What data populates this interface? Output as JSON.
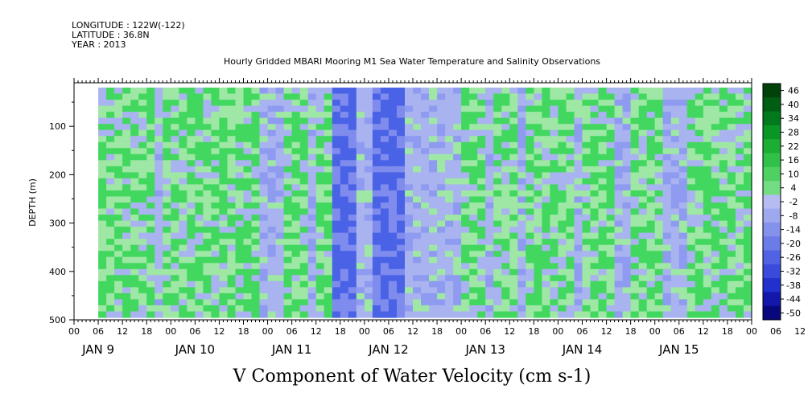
{
  "header": {
    "longitude": "LONGITUDE : 122W(-122)",
    "latitude": "LATITUDE : 36.8N",
    "year": "YEAR : 2013",
    "plot_title": "Hourly Gridded MBARI Mooring M1 Sea Water Temperature and Salinity Observations"
  },
  "chart_data": {
    "type": "heatmap",
    "title": "V Component of Water Velocity (cm s-1)",
    "ylabel": "DEPTH (m)",
    "y_ticks": [
      "100",
      "200",
      "300",
      "400",
      "500"
    ],
    "y_tick_values": [
      100,
      200,
      300,
      400,
      500
    ],
    "ylim": [
      500,
      10
    ],
    "y_reversed": true,
    "x_hour_ticks": [
      "00",
      "06",
      "12",
      "18",
      "00",
      "06",
      "12",
      "18",
      "00",
      "06",
      "12",
      "18",
      "00",
      "06",
      "12",
      "18",
      "00",
      "06",
      "12",
      "18",
      "00",
      "06",
      "12",
      "18",
      "00",
      "06",
      "12",
      "18",
      "00",
      "06",
      "12",
      "18"
    ],
    "x_day_labels": [
      "JAN  9",
      "JAN 10",
      "JAN 11",
      "JAN 12",
      "JAN 13",
      "JAN 14",
      "JAN 15"
    ],
    "x_range_hours": [
      0,
      168
    ],
    "data_start_hour": 6,
    "data_depth_range_m": [
      20,
      485
    ],
    "colorbar": {
      "levels": [
        "46",
        "40",
        "34",
        "28",
        "22",
        "16",
        "10",
        "4",
        "-2",
        "-8",
        "-14",
        "-20",
        "-26",
        "-32",
        "-38",
        "-44",
        "-50"
      ],
      "min": -50,
      "max": 50
    },
    "green_bands_hours": [
      [
        6,
        18
      ],
      [
        22,
        34
      ],
      [
        36,
        45
      ],
      [
        52,
        56
      ],
      [
        59,
        63
      ],
      [
        96,
        100
      ],
      [
        103,
        108
      ],
      [
        112,
        122
      ],
      [
        126,
        132
      ],
      [
        137,
        144
      ],
      [
        152,
        166
      ]
    ],
    "strong_blue_bands_hours": [
      [
        63,
        68
      ],
      [
        74,
        80
      ],
      [
        26,
        30
      ]
    ]
  },
  "colors": {
    "background_blue": "#a9b3f0",
    "light_green": "#9ee7a4",
    "green": "#42d860",
    "deep_blue": "#4a62e6",
    "colorbar_top": "#00420a",
    "colorbar_bottom": "#00006a"
  }
}
